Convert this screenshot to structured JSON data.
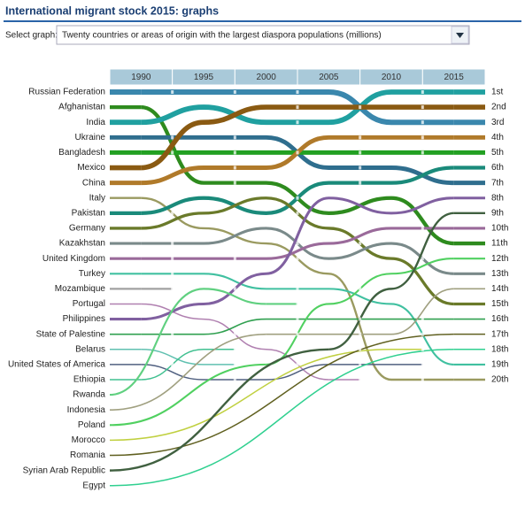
{
  "header": {
    "title": "International migrant stock 2015: graphs",
    "select_label": "Select graph:",
    "select_value": "Twenty countries or areas of origin with the largest diaspora populations (millions)"
  },
  "chart_data": {
    "type": "bump",
    "categories": [
      "1990",
      "1995",
      "2000",
      "2005",
      "2010",
      "2015"
    ],
    "ylim": [
      1,
      20
    ],
    "yticks": [
      {
        "value": 1,
        "label": "1st"
      },
      {
        "value": 2,
        "label": "2nd"
      },
      {
        "value": 3,
        "label": "3rd"
      },
      {
        "value": 4,
        "label": "4th"
      },
      {
        "value": 5,
        "label": "5th"
      },
      {
        "value": 6,
        "label": "6th"
      },
      {
        "value": 7,
        "label": "7th"
      },
      {
        "value": 8,
        "label": "8th"
      },
      {
        "value": 9,
        "label": "9th"
      },
      {
        "value": 10,
        "label": "10th"
      },
      {
        "value": 11,
        "label": "11th"
      },
      {
        "value": 12,
        "label": "12th"
      },
      {
        "value": 13,
        "label": "13th"
      },
      {
        "value": 14,
        "label": "14th"
      },
      {
        "value": 15,
        "label": "15th"
      },
      {
        "value": 16,
        "label": "16th"
      },
      {
        "value": 17,
        "label": "17th"
      },
      {
        "value": 18,
        "label": "18th"
      },
      {
        "value": 19,
        "label": "19th"
      },
      {
        "value": 20,
        "label": "20th"
      }
    ],
    "series": [
      {
        "name": "Russian Federation",
        "color": "#3a87ad",
        "values": [
          1,
          1,
          1,
          1,
          3,
          3
        ]
      },
      {
        "name": "Afghanistan",
        "color": "#2e8b1e",
        "values": [
          2,
          7,
          7,
          9,
          8,
          11
        ]
      },
      {
        "name": "India",
        "color": "#20a0a0",
        "values": [
          3,
          2,
          3,
          3,
          1,
          1
        ]
      },
      {
        "name": "Ukraine",
        "color": "#2f6e8e",
        "values": [
          4,
          4,
          4,
          6,
          6,
          7
        ]
      },
      {
        "name": "Bangladesh",
        "color": "#22a022",
        "values": [
          5,
          5,
          5,
          5,
          5,
          5
        ]
      },
      {
        "name": "Mexico",
        "color": "#8a5a12",
        "values": [
          6,
          3,
          2,
          2,
          2,
          2
        ]
      },
      {
        "name": "China",
        "color": "#b07a2a",
        "values": [
          7,
          6,
          6,
          4,
          4,
          4
        ]
      },
      {
        "name": "Italy",
        "color": "#9a9a60",
        "values": [
          8,
          10,
          11,
          13,
          20,
          20
        ]
      },
      {
        "name": "Pakistan",
        "color": "#1a8a7a",
        "values": [
          9,
          8,
          9,
          7,
          7,
          6
        ]
      },
      {
        "name": "Germany",
        "color": "#6a7a2a",
        "values": [
          10,
          9,
          8,
          10,
          12,
          15
        ]
      },
      {
        "name": "Kazakhstan",
        "color": "#7a8a8a",
        "values": [
          11,
          11,
          10,
          12,
          11,
          13
        ]
      },
      {
        "name": "United Kingdom",
        "color": "#9a6a9a",
        "values": [
          12,
          12,
          12,
          11,
          10,
          10
        ]
      },
      {
        "name": "Turkey",
        "color": "#40c0a0",
        "values": [
          13,
          13,
          14,
          14,
          15,
          19
        ]
      },
      {
        "name": "Mozambique",
        "color": "#a0a0a0",
        "values": [
          14,
          null,
          null,
          null,
          null,
          null
        ]
      },
      {
        "name": "Portugal",
        "color": "#b080b0",
        "values": [
          15,
          16,
          18,
          20,
          null,
          null
        ]
      },
      {
        "name": "Philippines",
        "color": "#8060a0",
        "values": [
          16,
          15,
          13,
          8,
          9,
          8
        ]
      },
      {
        "name": "State of Palestine",
        "color": "#30a050",
        "values": [
          17,
          17,
          16,
          16,
          16,
          16
        ]
      },
      {
        "name": "Belarus",
        "color": "#60c0b0",
        "values": [
          18,
          19,
          null,
          null,
          null,
          null
        ]
      },
      {
        "name": "United States of America",
        "color": "#506080",
        "values": [
          19,
          20,
          20,
          19,
          19,
          null
        ]
      },
      {
        "name": "Ethiopia",
        "color": "#40c090",
        "values": [
          20,
          18,
          null,
          null,
          null,
          null
        ]
      },
      {
        "name": "Rwanda",
        "color": "#60d080",
        "values": [
          null,
          14,
          15,
          null,
          null,
          null
        ]
      },
      {
        "name": "Indonesia",
        "color": "#a0a080",
        "values": [
          null,
          null,
          17,
          17,
          17,
          14
        ]
      },
      {
        "name": "Poland",
        "color": "#50d060",
        "values": [
          null,
          null,
          19,
          15,
          13,
          12
        ]
      },
      {
        "name": "Morocco",
        "color": "#c0d040",
        "values": [
          null,
          null,
          null,
          null,
          18,
          null
        ]
      },
      {
        "name": "Romania",
        "color": "#606020",
        "values": [
          null,
          null,
          null,
          null,
          null,
          17
        ]
      },
      {
        "name": "Syrian Arab Republic",
        "color": "#406040",
        "values": [
          null,
          null,
          null,
          18,
          14,
          9
        ]
      },
      {
        "name": "Egypt",
        "color": "#30d090",
        "values": [
          null,
          null,
          null,
          null,
          null,
          18
        ]
      }
    ]
  }
}
